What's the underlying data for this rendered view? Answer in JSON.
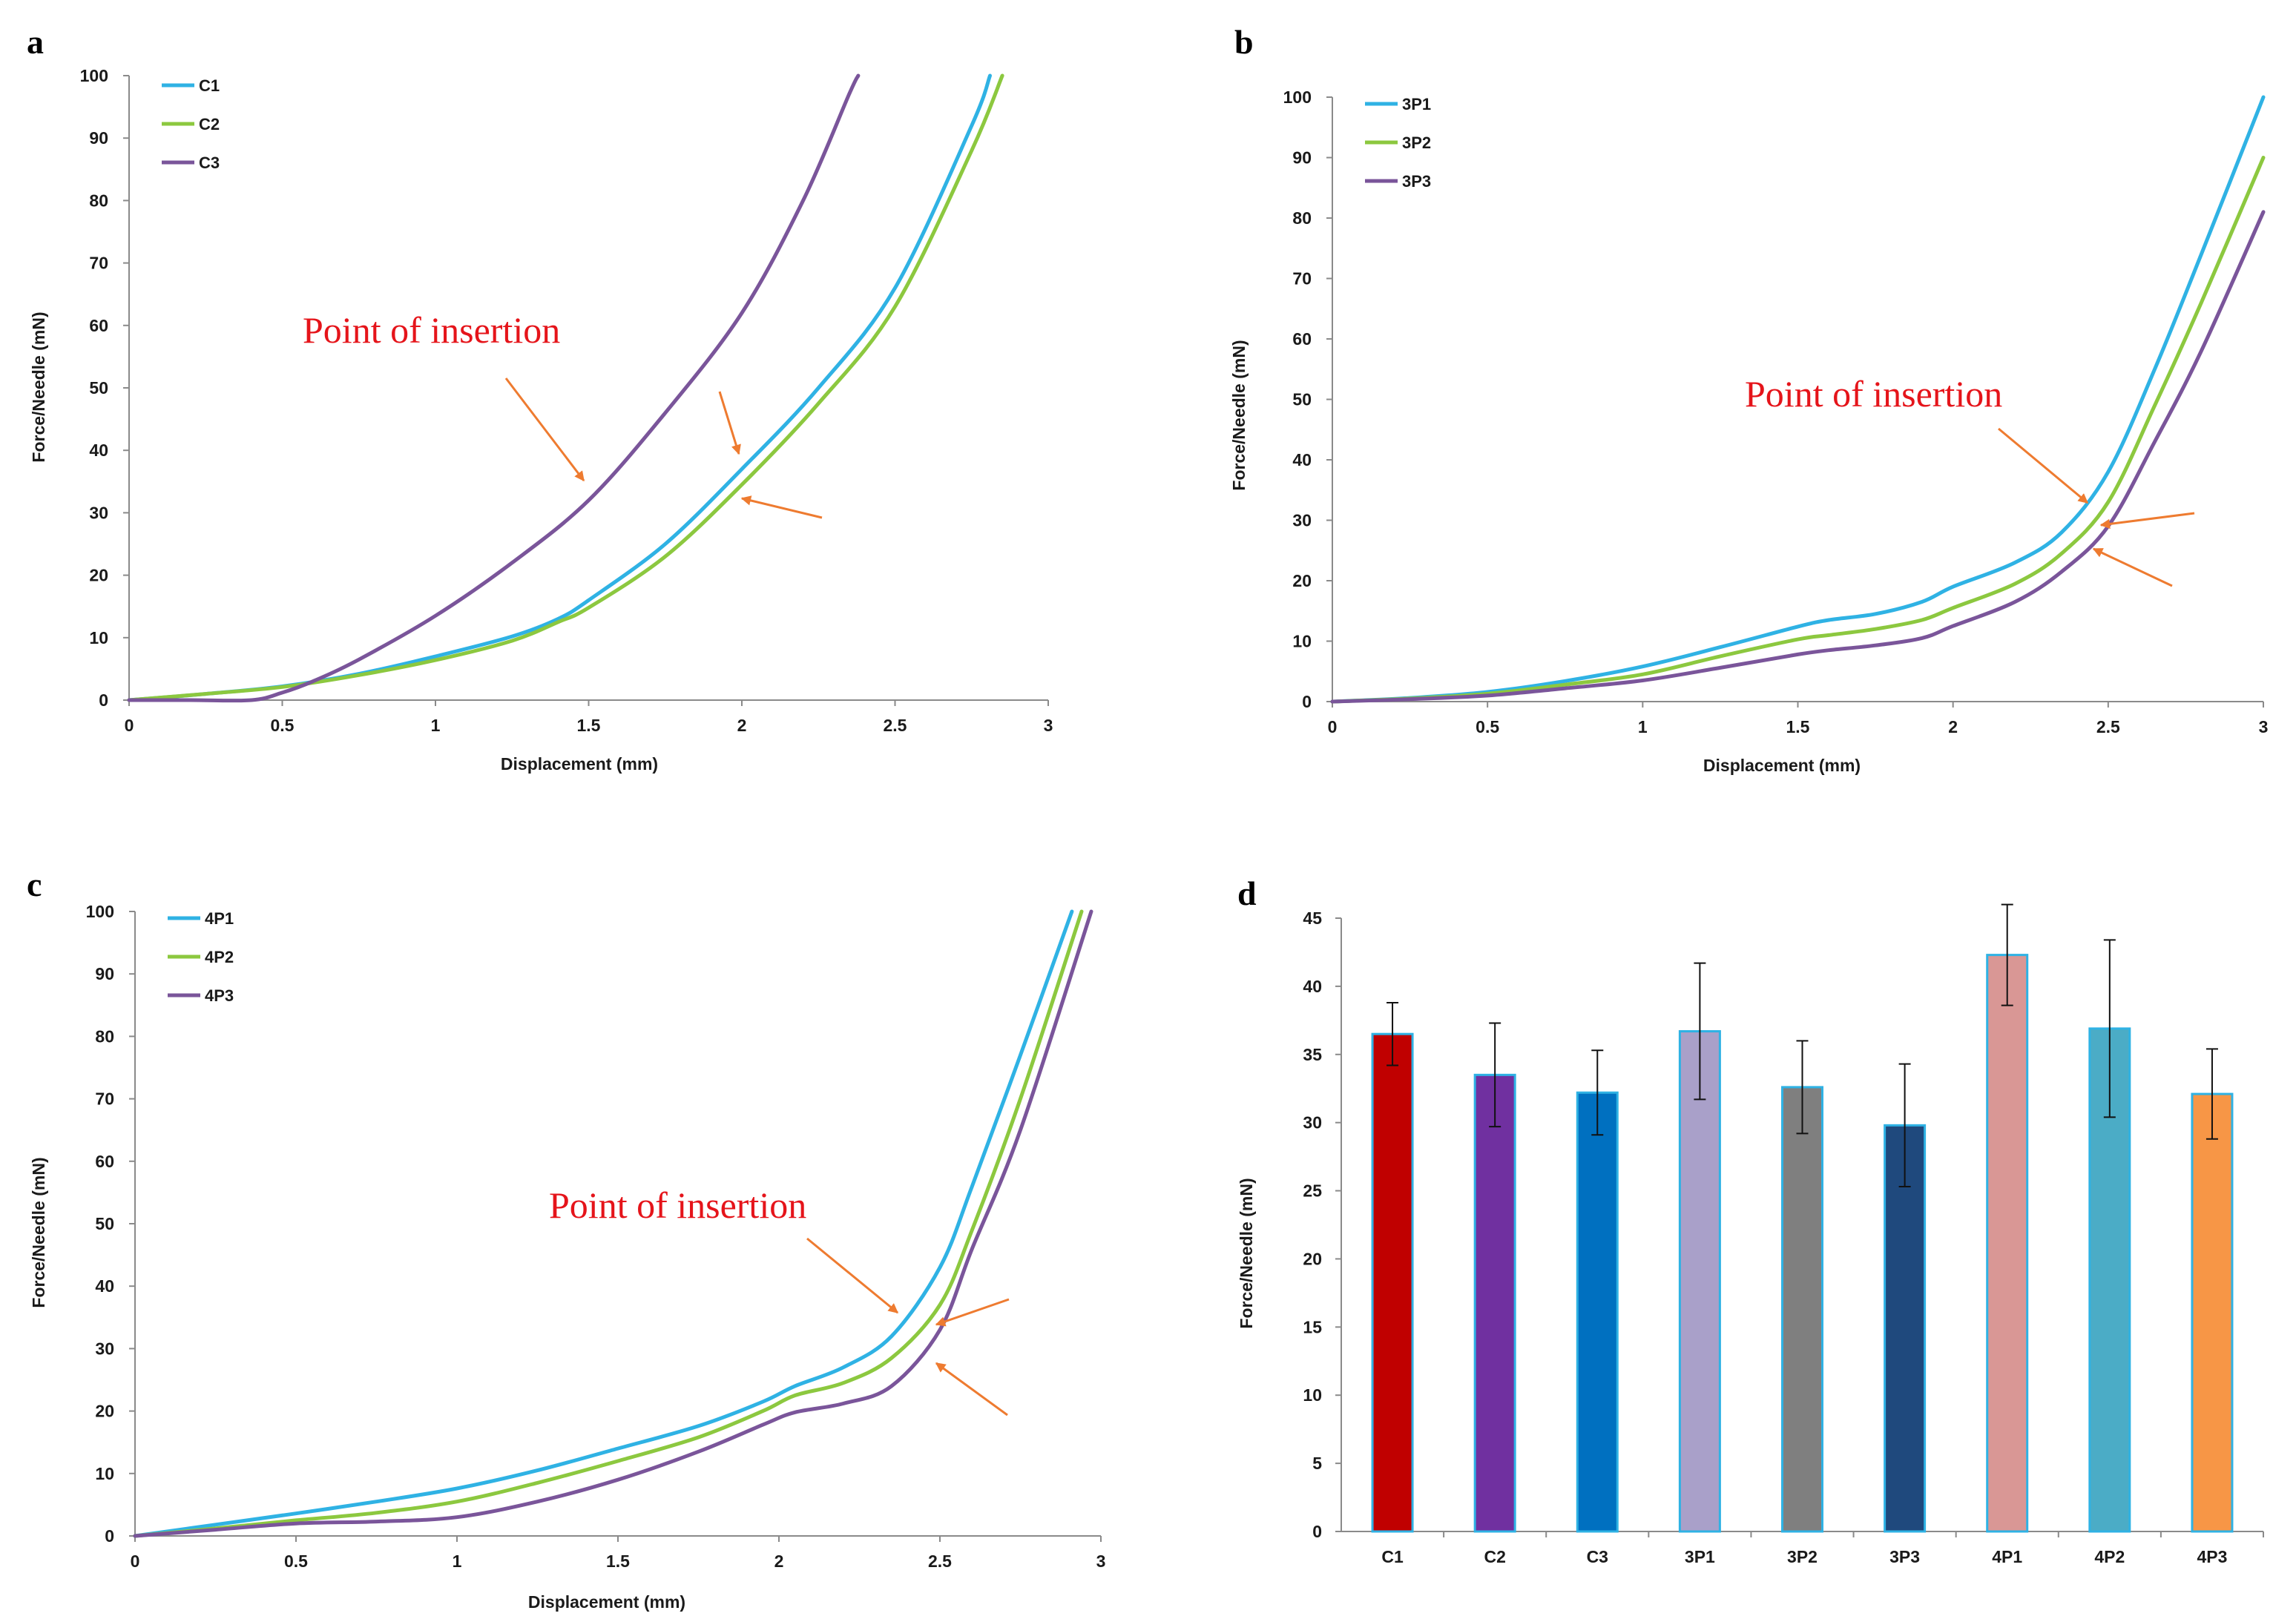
{
  "colors": {
    "blue": "#2fb2e4",
    "green": "#8cc83f",
    "purple": "#7a559a",
    "arrow": "#ee7b30",
    "annotation": "#e5141a",
    "errorbar": "#111111",
    "bar_edge": "#2fb2e4"
  },
  "chart_data": [
    {
      "panel": "a",
      "type": "line",
      "xlabel": "Displacement (mm)",
      "ylabel": "Force/Needle (mN)",
      "xlim": [
        0,
        3
      ],
      "ylim": [
        0,
        100
      ],
      "xticks": [
        "0",
        "0.5",
        "1",
        "1.5",
        "2",
        "2.5",
        "3"
      ],
      "yticks": [
        "0",
        "10",
        "20",
        "30",
        "40",
        "50",
        "60",
        "70",
        "80",
        "90",
        "100"
      ],
      "legend_position": "top-left",
      "annotation": "Point of insertion",
      "series": [
        {
          "name": "C1",
          "color": "blue",
          "points": [
            [
              0,
              0
            ],
            [
              0.25,
              1
            ],
            [
              0.5,
              2.2
            ],
            [
              0.75,
              4.2
            ],
            [
              1,
              7
            ],
            [
              1.25,
              10.2
            ],
            [
              1.4,
              13
            ],
            [
              1.5,
              16
            ],
            [
              1.75,
              25
            ],
            [
              2,
              37
            ],
            [
              2.25,
              50
            ],
            [
              2.5,
              66
            ],
            [
              2.75,
              92
            ],
            [
              2.81,
              100
            ]
          ]
        },
        {
          "name": "C2",
          "color": "green",
          "points": [
            [
              0,
              0
            ],
            [
              0.25,
              1
            ],
            [
              0.5,
              2.1
            ],
            [
              0.75,
              4
            ],
            [
              1,
              6.4
            ],
            [
              1.25,
              9.5
            ],
            [
              1.4,
              12.5
            ],
            [
              1.5,
              14.8
            ],
            [
              1.75,
              23
            ],
            [
              2,
              34.5
            ],
            [
              2.25,
              47.5
            ],
            [
              2.5,
              63
            ],
            [
              2.75,
              88
            ],
            [
              2.85,
              100
            ]
          ]
        },
        {
          "name": "C3",
          "color": "purple",
          "points": [
            [
              0,
              0
            ],
            [
              0.2,
              0
            ],
            [
              0.4,
              0
            ],
            [
              0.5,
              1.2
            ],
            [
              0.6,
              3
            ],
            [
              0.75,
              6.5
            ],
            [
              1,
              13.5
            ],
            [
              1.25,
              22
            ],
            [
              1.5,
              32
            ],
            [
              1.75,
              46
            ],
            [
              2,
              62
            ],
            [
              2.2,
              80
            ],
            [
              2.35,
              97
            ],
            [
              2.38,
              100
            ]
          ]
        }
      ],
      "insertion_arrows": 3
    },
    {
      "panel": "b",
      "type": "line",
      "xlabel": "Displacement (mm)",
      "ylabel": "Force/Needle (mN)",
      "xlim": [
        0,
        3
      ],
      "ylim": [
        0,
        100
      ],
      "xticks": [
        "0",
        "0.5",
        "1",
        "1.5",
        "2",
        "2.5",
        "3"
      ],
      "yticks": [
        "0",
        "10",
        "20",
        "30",
        "40",
        "50",
        "60",
        "70",
        "80",
        "90",
        "100"
      ],
      "legend_position": "top-left",
      "annotation": "Point of insertion",
      "series": [
        {
          "name": "3P1",
          "color": "blue",
          "points": [
            [
              0,
              0
            ],
            [
              0.25,
              0.6
            ],
            [
              0.5,
              1.6
            ],
            [
              0.75,
              3.4
            ],
            [
              1,
              5.8
            ],
            [
              1.25,
              9
            ],
            [
              1.5,
              12.4
            ],
            [
              1.6,
              13.5
            ],
            [
              1.75,
              14.5
            ],
            [
              1.9,
              16.5
            ],
            [
              2,
              19
            ],
            [
              2.2,
              23
            ],
            [
              2.35,
              28
            ],
            [
              2.5,
              38
            ],
            [
              2.65,
              55
            ],
            [
              2.8,
              74
            ],
            [
              3,
              100
            ]
          ]
        },
        {
          "name": "3P2",
          "color": "green",
          "points": [
            [
              0,
              0
            ],
            [
              0.25,
              0.5
            ],
            [
              0.5,
              1.3
            ],
            [
              0.75,
              2.8
            ],
            [
              1,
              4.5
            ],
            [
              1.25,
              7.5
            ],
            [
              1.5,
              10.3
            ],
            [
              1.6,
              11
            ],
            [
              1.75,
              12
            ],
            [
              1.9,
              13.5
            ],
            [
              2,
              15.5
            ],
            [
              2.2,
              19.5
            ],
            [
              2.35,
              24.5
            ],
            [
              2.5,
              33
            ],
            [
              2.65,
              49
            ],
            [
              2.8,
              66
            ],
            [
              3,
              90
            ]
          ]
        },
        {
          "name": "3P3",
          "color": "purple",
          "points": [
            [
              0,
              0
            ],
            [
              0.25,
              0.4
            ],
            [
              0.5,
              1
            ],
            [
              0.75,
              2.2
            ],
            [
              1,
              3.5
            ],
            [
              1.25,
              5.6
            ],
            [
              1.5,
              7.8
            ],
            [
              1.6,
              8.5
            ],
            [
              1.75,
              9.3
            ],
            [
              1.9,
              10.5
            ],
            [
              2,
              12.5
            ],
            [
              2.2,
              16.5
            ],
            [
              2.35,
              21.5
            ],
            [
              2.5,
              29
            ],
            [
              2.65,
              43
            ],
            [
              2.8,
              58
            ],
            [
              3,
              81
            ]
          ]
        }
      ],
      "insertion_arrows": 3
    },
    {
      "panel": "c",
      "type": "line",
      "xlabel": "Displacement (mm)",
      "ylabel": "Force/Needle (mN)",
      "xlim": [
        0,
        3
      ],
      "ylim": [
        0,
        100
      ],
      "xticks": [
        "0",
        "0.5",
        "1",
        "1.5",
        "2",
        "2.5",
        "3"
      ],
      "yticks": [
        "0",
        "10",
        "20",
        "30",
        "40",
        "50",
        "60",
        "70",
        "80",
        "90",
        "100"
      ],
      "legend_position": "top-left",
      "annotation": "Point of insertion",
      "series": [
        {
          "name": "4P1",
          "color": "blue",
          "points": [
            [
              0,
              0
            ],
            [
              0.25,
              1.8
            ],
            [
              0.5,
              3.6
            ],
            [
              0.75,
              5.5
            ],
            [
              1,
              7.6
            ],
            [
              1.25,
              10.5
            ],
            [
              1.5,
              14
            ],
            [
              1.75,
              17.6
            ],
            [
              1.95,
              21.5
            ],
            [
              2.05,
              24
            ],
            [
              2.2,
              27
            ],
            [
              2.35,
              32
            ],
            [
              2.5,
              43
            ],
            [
              2.6,
              56
            ],
            [
              2.75,
              77
            ],
            [
              2.91,
              100
            ]
          ]
        },
        {
          "name": "4P2",
          "color": "green",
          "points": [
            [
              0,
              0
            ],
            [
              0.25,
              1.2
            ],
            [
              0.5,
              2.5
            ],
            [
              0.75,
              3.7
            ],
            [
              1,
              5.5
            ],
            [
              1.25,
              8.5
            ],
            [
              1.5,
              12
            ],
            [
              1.75,
              15.8
            ],
            [
              1.95,
              20
            ],
            [
              2.05,
              22.5
            ],
            [
              2.2,
              24.5
            ],
            [
              2.35,
              28.5
            ],
            [
              2.5,
              37
            ],
            [
              2.6,
              49
            ],
            [
              2.75,
              70
            ],
            [
              2.94,
              100
            ]
          ]
        },
        {
          "name": "4P3",
          "color": "purple",
          "points": [
            [
              0,
              0
            ],
            [
              0.25,
              1
            ],
            [
              0.5,
              2
            ],
            [
              0.75,
              2.3
            ],
            [
              1,
              3
            ],
            [
              1.25,
              5.5
            ],
            [
              1.5,
              9
            ],
            [
              1.75,
              13.5
            ],
            [
              1.95,
              17.8
            ],
            [
              2.05,
              19.8
            ],
            [
              2.2,
              21.2
            ],
            [
              2.35,
              24
            ],
            [
              2.5,
              33
            ],
            [
              2.6,
              46
            ],
            [
              2.75,
              65
            ],
            [
              2.97,
              100
            ]
          ]
        }
      ],
      "insertion_arrows": 3
    },
    {
      "panel": "d",
      "type": "bar",
      "ylabel": "Force/Needle (mN)",
      "ylim": [
        0,
        45
      ],
      "yticks": [
        "0",
        "5",
        "10",
        "15",
        "20",
        "25",
        "30",
        "35",
        "40",
        "45"
      ],
      "categories": [
        "C1",
        "C2",
        "C3",
        "3P1",
        "3P2",
        "3P3",
        "4P1",
        "4P2",
        "4P3"
      ],
      "values": [
        36.5,
        33.5,
        32.2,
        36.7,
        32.6,
        29.8,
        42.3,
        36.9,
        32.1
      ],
      "errors": [
        2.3,
        3.8,
        3.1,
        5.0,
        3.4,
        4.5,
        3.7,
        6.5,
        3.3
      ],
      "bar_colors": [
        "#c00000",
        "#7030a0",
        "#0070c0",
        "#a9a0c9",
        "#7f7f7f",
        "#1f497d",
        "#d99795",
        "#4bacc6",
        "#f79646"
      ]
    }
  ]
}
